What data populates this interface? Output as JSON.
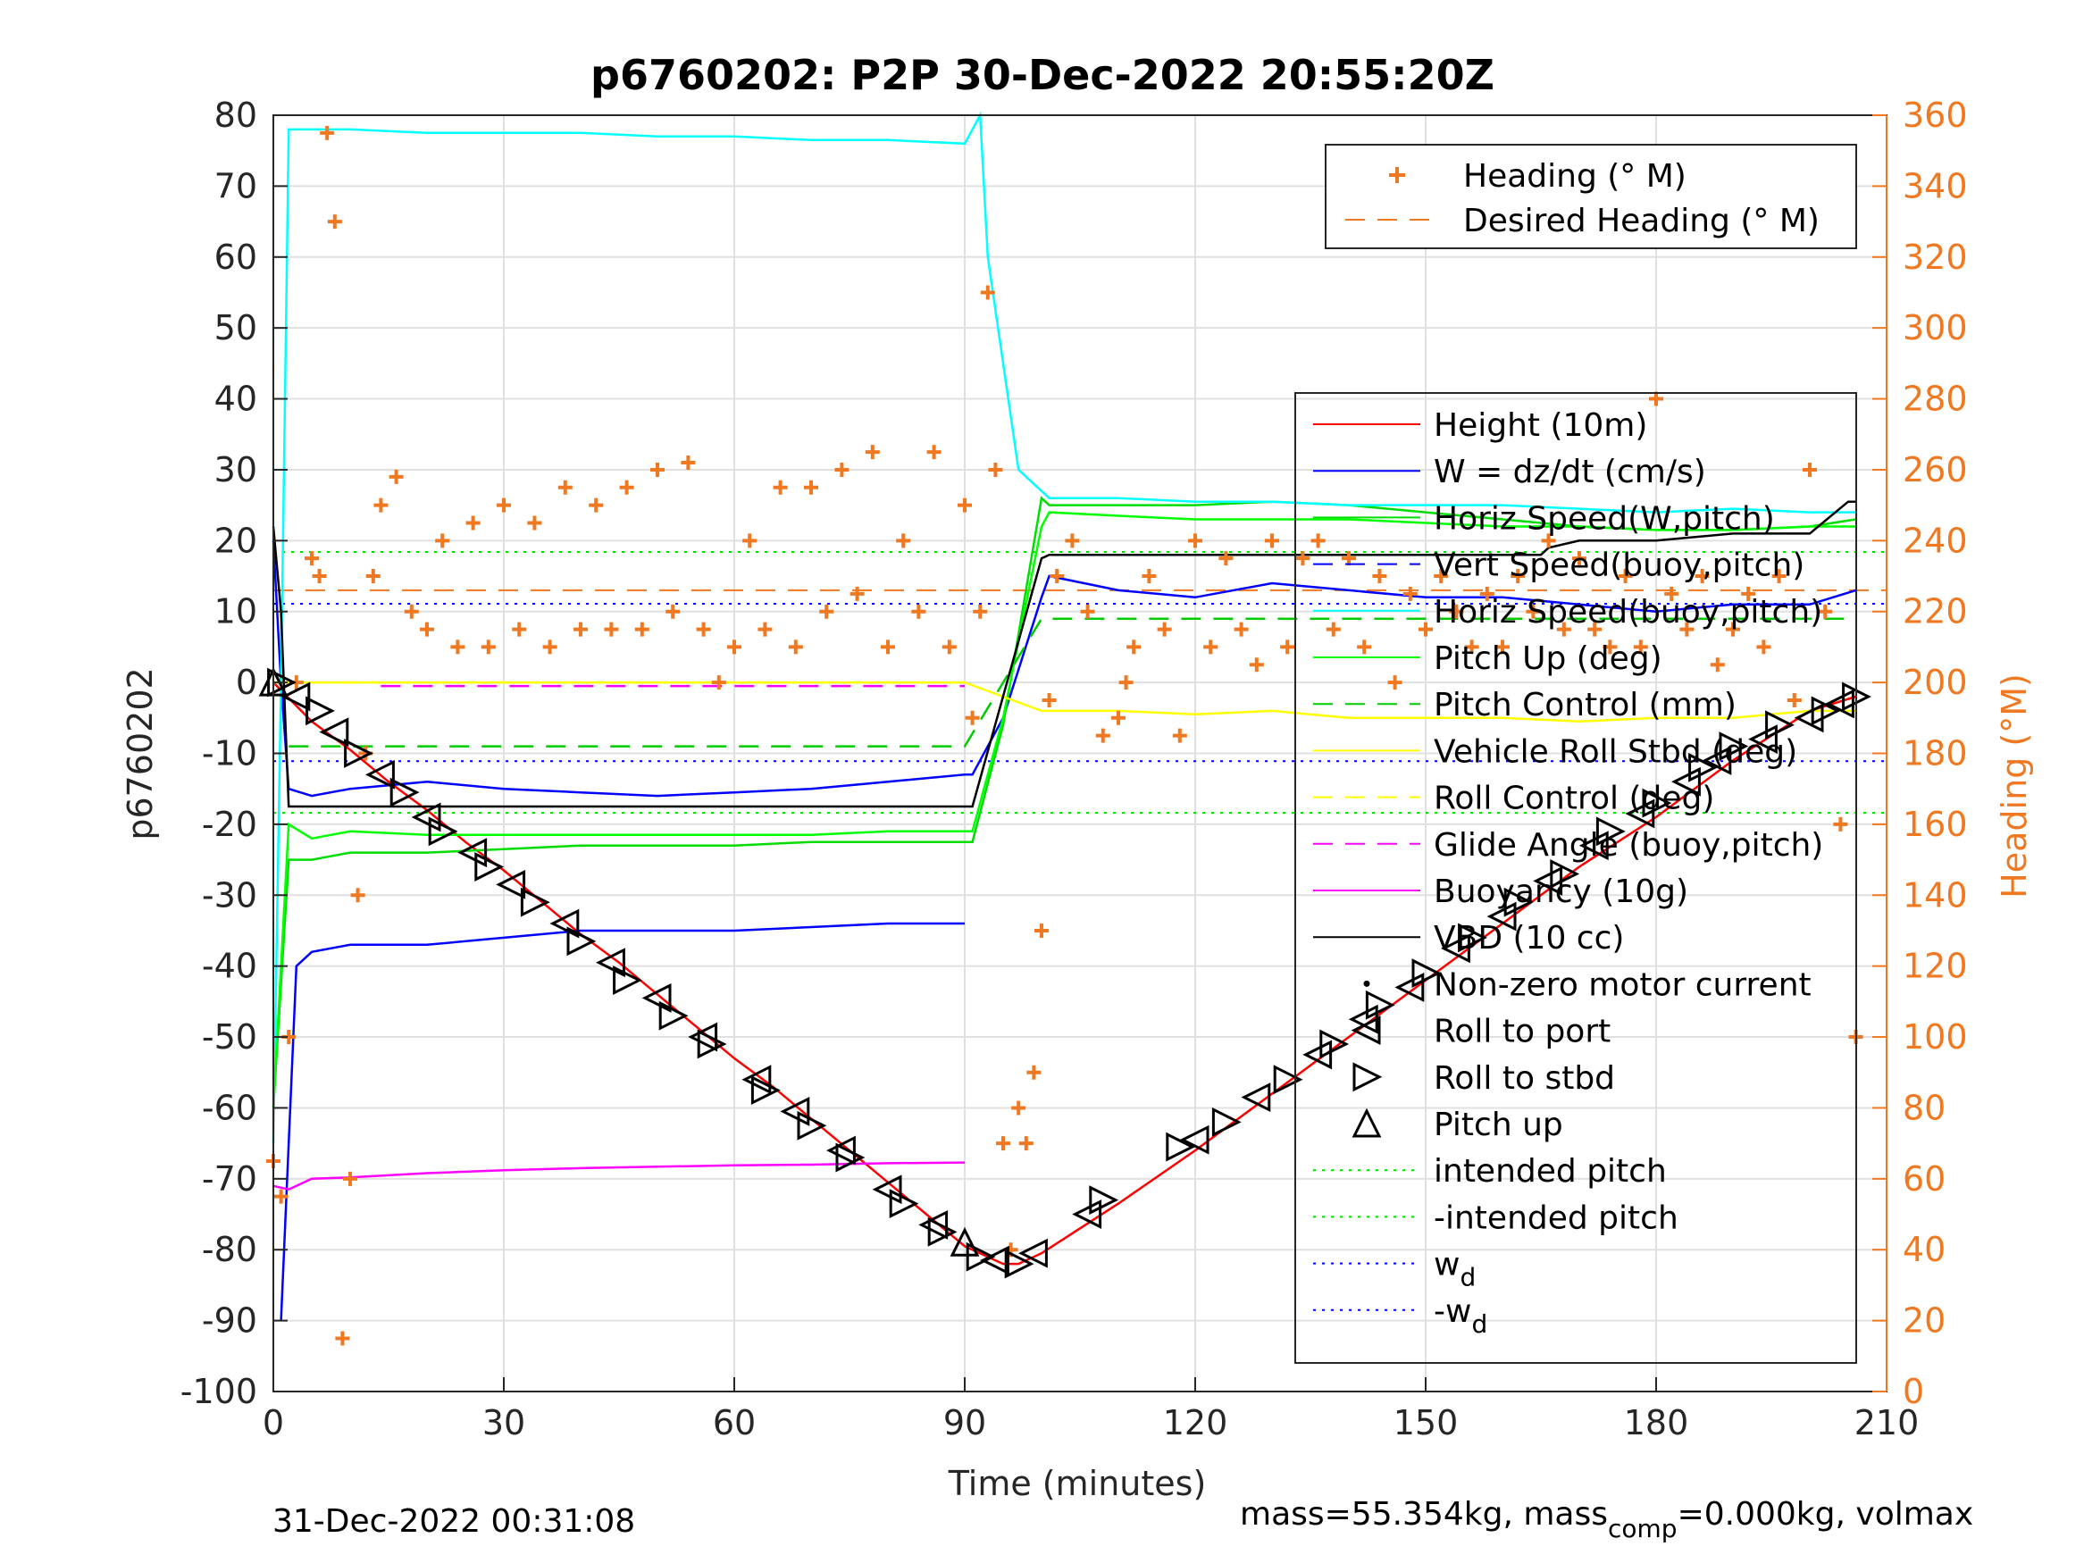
{
  "chart_data": {
    "type": "line",
    "title": "p6760202: P2P 30-Dec-2022 20:55:20Z",
    "xlabel": "Time (minutes)",
    "ylabel": "p6760202",
    "y2label": "Heading (°M)",
    "xlim": [
      0,
      210
    ],
    "ylim": [
      -100,
      80
    ],
    "y2lim": [
      0,
      360
    ],
    "xticks": [
      0,
      30,
      60,
      90,
      120,
      150,
      180,
      210
    ],
    "yticks": [
      -100,
      -90,
      -80,
      -70,
      -60,
      -50,
      -40,
      -30,
      -20,
      -10,
      0,
      10,
      20,
      30,
      40,
      50,
      60,
      70,
      80
    ],
    "y2ticks": [
      0,
      20,
      40,
      60,
      80,
      100,
      120,
      140,
      160,
      180,
      200,
      220,
      240,
      260,
      280,
      300,
      320,
      340,
      360
    ],
    "grid": true,
    "footer_left": "31-Dec-2022 00:31:08",
    "footer_right_prefix": "mass=55.354kg, mass",
    "footer_right_sub": "comp",
    "footer_right_suffix": "=0.000kg, volmax",
    "legend_top": {
      "placement": "top-right",
      "entries": [
        {
          "label": "Heading (° M)",
          "color": "#f07820",
          "marker": "plus"
        },
        {
          "label": "Desired Heading (° M)",
          "color": "#f07820",
          "style": "dashed"
        }
      ]
    },
    "legend_main": {
      "placement": "right",
      "entries": [
        {
          "label": "Height (10m)",
          "color": "#ff0000",
          "style": "solid"
        },
        {
          "label": "W = dz/dt (cm/s)",
          "color": "#0000ff",
          "style": "solid"
        },
        {
          "label": "Horiz Speed(W,pitch)",
          "color": "#00dd00",
          "style": "solid"
        },
        {
          "label": "Vert Speed(buoy,pitch)",
          "color": "#0000ff",
          "style": "dashed"
        },
        {
          "label": "Horiz Speed(buoy,pitch)",
          "color": "#00ffff",
          "style": "solid"
        },
        {
          "label": "Pitch Up (deg)",
          "color": "#00ff00",
          "style": "solid"
        },
        {
          "label": "Pitch Control (mm)",
          "color": "#00cc00",
          "style": "dashed"
        },
        {
          "label": "Vehicle Roll Stbd (deg)",
          "color": "#ffff00",
          "style": "solid"
        },
        {
          "label": "Roll Control (deg)",
          "color": "#ffff00",
          "style": "dashed"
        },
        {
          "label": "Glide Angle (buoy,pitch)",
          "color": "#ff00ff",
          "style": "dashed"
        },
        {
          "label": "Buoyancy (10g)",
          "color": "#ff00ff",
          "style": "solid"
        },
        {
          "label": "VBD (10 cc)",
          "color": "#000000",
          "style": "solid"
        },
        {
          "label": "Non-zero motor current",
          "color": "#000000",
          "marker": "dot"
        },
        {
          "label": "Roll to port",
          "color": "#000000",
          "marker": "triangle-left"
        },
        {
          "label": "Roll to stbd",
          "color": "#000000",
          "marker": "triangle-right"
        },
        {
          "label": "Pitch up",
          "color": "#000000",
          "marker": "triangle-up"
        },
        {
          "label": "intended pitch",
          "color": "#00dd00",
          "style": "dotted"
        },
        {
          "label": "-intended pitch",
          "color": "#00dd00",
          "style": "dotted"
        },
        {
          "label": "w",
          "sub": "d",
          "color": "#0000ff",
          "style": "dotted"
        },
        {
          "label": "-w",
          "sub": "d",
          "color": "#0000ff",
          "style": "dotted"
        }
      ]
    },
    "reference_lines": {
      "intended_pitch": 18.4,
      "neg_intended_pitch": -18.4,
      "wd": 11.1,
      "neg_wd": -11.1,
      "desired_heading_deg": 226
    },
    "series": [
      {
        "name": "Height (10m)",
        "color": "#ff0000",
        "x": [
          0,
          5,
          10,
          15,
          20,
          25,
          30,
          35,
          40,
          45,
          50,
          55,
          60,
          65,
          70,
          75,
          80,
          85,
          90,
          95,
          97,
          100,
          110,
          120,
          130,
          140,
          150,
          160,
          170,
          180,
          190,
          200,
          206
        ],
        "y": [
          0,
          -5.5,
          -9.5,
          -14,
          -18,
          -22.5,
          -26.5,
          -31,
          -35.5,
          -39.5,
          -44,
          -48.5,
          -53,
          -57,
          -61.5,
          -66,
          -70.5,
          -75,
          -79.5,
          -82,
          -82,
          -80.5,
          -73.5,
          -66,
          -58,
          -50,
          -42,
          -34,
          -26,
          -19,
          -11,
          -4,
          -2
        ]
      },
      {
        "name": "W = dz/dt (cm/s)",
        "color": "#0000ff",
        "x": [
          0,
          1,
          2,
          5,
          10,
          20,
          30,
          40,
          50,
          60,
          70,
          80,
          90,
          91,
          95,
          100,
          101,
          110,
          120,
          130,
          140,
          150,
          160,
          170,
          180,
          190,
          200,
          206
        ],
        "y": [
          20,
          0,
          -15,
          -16,
          -15,
          -14,
          -15,
          -15.5,
          -16,
          -15.5,
          -15,
          -14,
          -13,
          -13,
          -5,
          12,
          15,
          13,
          12,
          14,
          13,
          12,
          12,
          11,
          10,
          11,
          11,
          13
        ]
      },
      {
        "name": "Vert Speed(buoy,pitch)",
        "color": "#0000ff",
        "x": [
          1,
          3,
          5,
          10,
          20,
          30,
          40,
          50,
          60,
          70,
          80,
          90
        ],
        "y": [
          -90,
          -40,
          -38,
          -37,
          -37,
          -36,
          -35,
          -35,
          -35,
          -34.5,
          -34,
          -34
        ]
      },
      {
        "name": "Horiz Speed(W,pitch)",
        "color": "#00dd00",
        "x": [
          0,
          2,
          5,
          10,
          20,
          30,
          40,
          50,
          60,
          70,
          80,
          90,
          91,
          95,
          100,
          101,
          110,
          120,
          130,
          140,
          150,
          160,
          170,
          180,
          190,
          200,
          206
        ],
        "y": [
          -60,
          -25,
          -25,
          -24,
          -24,
          -23.5,
          -23,
          -23,
          -23,
          -22.5,
          -22.5,
          -22.5,
          -22.5,
          -6,
          26,
          25,
          25,
          25,
          25.5,
          25,
          24,
          23,
          22,
          21.5,
          21.5,
          22,
          23
        ]
      },
      {
        "name": "Horiz Speed(buoy,pitch)",
        "color": "#00ffff",
        "x": [
          0,
          1,
          2,
          5,
          10,
          20,
          30,
          40,
          50,
          60,
          70,
          80,
          90,
          92,
          93,
          95,
          97,
          100,
          101,
          110,
          120,
          130,
          140,
          150,
          160,
          170,
          180,
          190,
          200,
          206
        ],
        "y": [
          -65,
          0,
          78,
          78,
          78,
          77.5,
          77.5,
          77.5,
          77,
          77,
          76.5,
          76.5,
          76,
          80,
          60,
          45,
          30,
          27,
          26,
          26,
          25.5,
          25.5,
          25,
          25,
          25,
          24.5,
          24,
          24.5,
          24,
          24
        ]
      },
      {
        "name": "Pitch Up (deg)",
        "color": "#00ff00",
        "x": [
          0,
          2,
          5,
          10,
          20,
          30,
          40,
          50,
          60,
          70,
          80,
          90,
          91,
          95,
          100,
          101,
          110,
          120,
          130,
          140,
          150,
          160,
          170,
          180,
          190,
          200,
          206
        ],
        "y": [
          -60,
          -20,
          -22,
          -21,
          -21.5,
          -21.5,
          -21.5,
          -21.5,
          -21.5,
          -21.5,
          -21,
          -21,
          -21,
          -5,
          22,
          24,
          23.5,
          23,
          23,
          23,
          22.5,
          22,
          22,
          21.5,
          21.5,
          22,
          22
        ]
      },
      {
        "name": "Pitch Control (mm)",
        "color": "#00cc00",
        "style": "dashed",
        "x": [
          2,
          90,
          100,
          206
        ],
        "y": [
          -9,
          -9,
          9,
          9
        ]
      },
      {
        "name": "Vehicle Roll Stbd (deg)",
        "color": "#ffff00",
        "x": [
          0,
          5,
          10,
          20,
          30,
          40,
          50,
          60,
          70,
          80,
          90,
          95,
          100,
          110,
          120,
          130,
          140,
          150,
          160,
          170,
          180,
          190,
          200,
          206
        ],
        "y": [
          0,
          0,
          0,
          0,
          0,
          0,
          0,
          0,
          0,
          0,
          0,
          -2,
          -4,
          -4,
          -4.5,
          -4,
          -5,
          -5,
          -5,
          -5.5,
          -5,
          -5,
          -4,
          -4
        ]
      },
      {
        "name": "Roll Control (deg)",
        "color": "#ffff00",
        "style": "dashed",
        "x": [
          0,
          90
        ],
        "y": [
          0,
          0
        ]
      },
      {
        "name": "Glide Angle (buoy,pitch)",
        "color": "#ff00ff",
        "style": "dashed",
        "x": [
          14,
          90
        ],
        "y": [
          -0.5,
          -0.5
        ]
      },
      {
        "name": "Buoyancy (10g)",
        "color": "#ff00ff",
        "x": [
          0,
          2,
          5,
          10,
          20,
          30,
          40,
          50,
          60,
          70,
          80,
          90
        ],
        "y": [
          -71,
          -71.5,
          -70,
          -69.8,
          -69.2,
          -68.8,
          -68.5,
          -68.3,
          -68.1,
          -68,
          -67.8,
          -67.7
        ]
      },
      {
        "name": "VBD (10 cc)",
        "color": "#000000",
        "x": [
          0,
          1,
          2,
          10,
          30,
          60,
          90,
          91,
          100,
          101,
          130,
          150,
          165,
          166,
          170,
          180,
          190,
          195,
          200,
          205,
          206
        ],
        "y": [
          22,
          10,
          -17.5,
          -17.5,
          -17.5,
          -17.5,
          -17.5,
          -17.5,
          17.5,
          18,
          18,
          18,
          18,
          19,
          20,
          20,
          21,
          21,
          21,
          25.5,
          25.5
        ]
      },
      {
        "name": "Heading (° M)",
        "color": "#f07820",
        "marker": "plus",
        "axis": "right",
        "x": [
          0,
          1,
          2,
          3,
          5,
          6,
          7,
          8,
          9,
          10,
          11,
          12,
          13,
          14,
          16,
          18,
          20,
          22,
          24,
          26,
          28,
          30,
          32,
          34,
          36,
          38,
          40,
          42,
          44,
          46,
          48,
          50,
          52,
          54,
          56,
          58,
          60,
          62,
          64,
          66,
          68,
          70,
          72,
          74,
          76,
          78,
          80,
          82,
          84,
          86,
          88,
          90,
          91,
          92,
          93,
          94,
          95,
          96,
          97,
          98,
          99,
          100,
          101,
          102,
          104,
          106,
          108,
          110,
          111,
          112,
          114,
          116,
          118,
          120,
          122,
          124,
          126,
          128,
          130,
          132,
          134,
          136,
          138,
          140,
          142,
          144,
          146,
          148,
          150,
          152,
          154,
          156,
          158,
          160,
          162,
          164,
          166,
          168,
          170,
          172,
          174,
          176,
          178,
          180,
          182,
          184,
          186,
          188,
          190,
          192,
          194,
          196,
          198,
          200,
          202,
          204,
          206
        ],
        "y": [
          65,
          55,
          100,
          200,
          235,
          230,
          355,
          330,
          15,
          60,
          140,
          180,
          230,
          250,
          258,
          220,
          215,
          240,
          210,
          245,
          210,
          250,
          215,
          245,
          210,
          255,
          215,
          250,
          215,
          255,
          215,
          260,
          220,
          262,
          215,
          200,
          210,
          240,
          215,
          255,
          210,
          255,
          220,
          260,
          225,
          265,
          210,
          240,
          220,
          265,
          210,
          250,
          190,
          220,
          310,
          260,
          70,
          40,
          80,
          70,
          90,
          130,
          195,
          230,
          240,
          220,
          185,
          190,
          200,
          210,
          230,
          215,
          185,
          240,
          210,
          235,
          215,
          205,
          240,
          210,
          235,
          240,
          215,
          235,
          210,
          230,
          200,
          225,
          215,
          230,
          220,
          210,
          225,
          210,
          230,
          220,
          240,
          215,
          235,
          215,
          210,
          230,
          210,
          280,
          225,
          215,
          230,
          205,
          215,
          225,
          210,
          230,
          195,
          260,
          220,
          160,
          100
        ]
      }
    ],
    "markers": {
      "triangle-right": {
        "x": [
          1,
          6,
          11,
          17,
          22,
          28,
          34,
          40,
          46,
          52,
          57,
          64,
          70,
          75,
          82,
          87,
          92,
          97,
          108,
          118,
          124,
          132,
          138,
          144,
          150,
          156,
          162,
          168,
          174,
          180,
          186,
          190,
          196,
          202,
          206
        ],
        "y": [
          0,
          -4,
          -10,
          -15.5,
          -21,
          -26,
          -31,
          -36.5,
          -42,
          -47,
          -51,
          -57.5,
          -62.5,
          -67,
          -73.5,
          -77.5,
          -81,
          -82,
          -73,
          -65.5,
          -62,
          -56,
          -51,
          -45.5,
          -41,
          -36,
          -31,
          -27,
          -21,
          -17,
          -12,
          -9,
          -6,
          -4,
          -2
        ]
      },
      "triangle-left": {
        "x": [
          3,
          8,
          14,
          20,
          26,
          31,
          38,
          44,
          50,
          56,
          63,
          68,
          74,
          80,
          86,
          94,
          99,
          106,
          120,
          128,
          136,
          142,
          148,
          154,
          160,
          166,
          172,
          178,
          184,
          188,
          194,
          200,
          204
        ],
        "y": [
          -2,
          -7,
          -13,
          -19,
          -24,
          -28.5,
          -34,
          -39.5,
          -44.5,
          -50,
          -56,
          -60.5,
          -66,
          -71.5,
          -76.5,
          -81.5,
          -80.5,
          -75,
          -64.5,
          -58.5,
          -52.5,
          -47.5,
          -43,
          -37.5,
          -33,
          -28,
          -23,
          -18.5,
          -14,
          -11,
          -8,
          -5,
          -3
        ]
      },
      "triangle-up": {
        "x": [
          0,
          90
        ],
        "y": [
          0,
          -79
        ]
      }
    }
  }
}
